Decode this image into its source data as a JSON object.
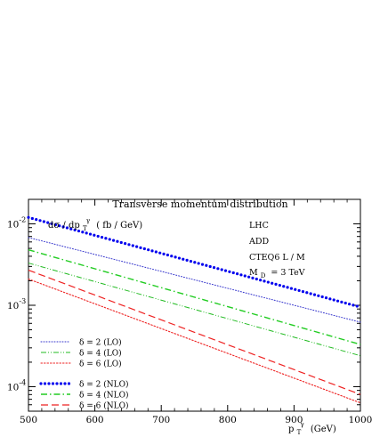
{
  "chart_data": {
    "type": "line",
    "title": "Transverse momentum distribution",
    "ylabel_main": "dσ / dp",
    "ylabel_sup": "γ",
    "ylabel_sub": "T",
    "ylabel_unit": "( fb / GeV)",
    "xlabel_main": "p",
    "xlabel_sup": "γ",
    "xlabel_sub": "T",
    "xlabel_unit": "(GeV)",
    "annotations": [
      "LHC",
      "ADD",
      "CTEQ6 L / M"
    ],
    "annotation_md": {
      "main": "M",
      "sub": "D",
      "rest": "= 3 TeV"
    },
    "xlim": [
      500,
      1000
    ],
    "ylim": [
      5e-05,
      0.02
    ],
    "yscale": "log",
    "xticks": [
      "500",
      "600",
      "700",
      "800",
      "900",
      "1000"
    ],
    "yticks": [
      {
        "value": 0.01,
        "base": "10",
        "exp": "-2"
      },
      {
        "value": 0.001,
        "base": "10",
        "exp": "-3"
      },
      {
        "value": 0.0001,
        "base": "10",
        "exp": "-4"
      }
    ],
    "legend_placement": "bottom-left",
    "series": [
      {
        "name": "δ = 2 (LO)",
        "color": "#3333cc",
        "style": "dotted",
        "x": [
          500,
          1000
        ],
        "values": [
          0.0068,
          0.00062
        ]
      },
      {
        "name": "δ = 4 (LO)",
        "color": "#22bb22",
        "style": "dashdotdot",
        "x": [
          500,
          1000
        ],
        "values": [
          0.0033,
          0.00024
        ]
      },
      {
        "name": "δ = 6 (LO)",
        "color": "#ee2222",
        "style": "dotted-red",
        "x": [
          500,
          1000
        ],
        "values": [
          0.0021,
          6.33e-05
        ]
      },
      {
        "name": "δ = 2 (NLO)",
        "color": "#0000ee",
        "style": "bigdots",
        "x": [
          500,
          1000
        ],
        "values": [
          0.012,
          0.00095
        ]
      },
      {
        "name": "δ = 4 (NLO)",
        "color": "#22cc22",
        "style": "dashdot",
        "x": [
          500,
          1000
        ],
        "values": [
          0.0048,
          0.00033
        ]
      },
      {
        "name": "δ = 6 (NLO)",
        "color": "#ee2222",
        "style": "dashed",
        "x": [
          500,
          1000
        ],
        "values": [
          0.0027,
          8.03e-05
        ]
      }
    ]
  }
}
